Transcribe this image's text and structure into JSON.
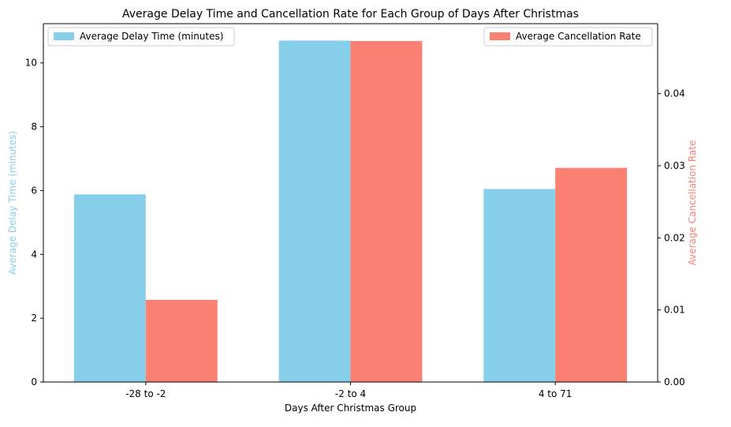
{
  "chart_data": {
    "type": "bar",
    "title": "Average Delay Time and Cancellation Rate for Each Group of Days After Christmas",
    "xlabel": "Days After Christmas Group",
    "categories": [
      "-28 to -2",
      "-2 to 4",
      "4 to 71"
    ],
    "grid": false,
    "series": [
      {
        "name": "Average Delay Time (minutes)",
        "axis": "left",
        "color": "#87CEEB",
        "values": [
          5.88,
          10.7,
          6.05
        ]
      },
      {
        "name": "Average Cancellation Rate",
        "axis": "right",
        "color": "#FA8072",
        "values": [
          0.0114,
          0.0473,
          0.0297
        ]
      }
    ],
    "y_left": {
      "label": "Average Delay Time (minutes)",
      "ylim": [
        0,
        11.23
      ],
      "ticks": [
        0,
        2,
        4,
        6,
        8,
        10
      ],
      "tick_labels": [
        "0",
        "2",
        "4",
        "6",
        "8",
        "10"
      ],
      "label_color": "#87CEEB"
    },
    "y_right": {
      "label": "Average Cancellation Rate",
      "ylim": [
        0,
        0.0497
      ],
      "ticks": [
        0,
        0.01,
        0.02,
        0.03,
        0.04
      ],
      "tick_labels": [
        "0.00",
        "0.01",
        "0.02",
        "0.03",
        "0.04"
      ],
      "label_color": "#FA8072"
    },
    "legends": [
      {
        "placement": "top-left",
        "series_index": 0
      },
      {
        "placement": "top-right",
        "series_index": 1
      }
    ]
  }
}
